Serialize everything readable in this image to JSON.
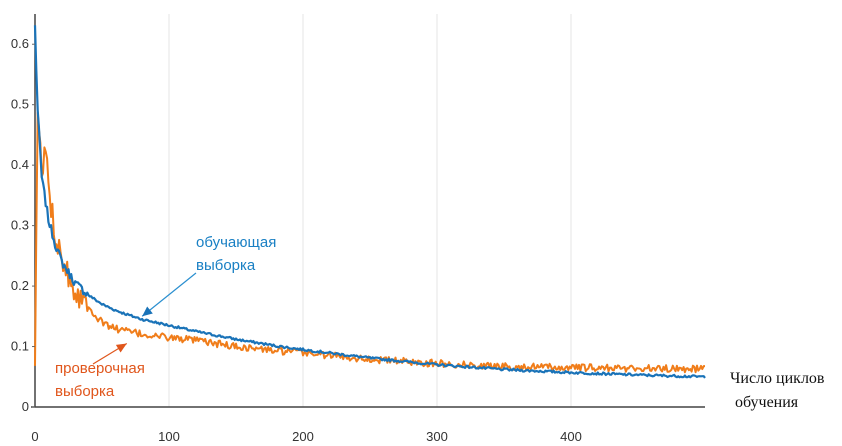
{
  "chart_data": {
    "type": "line",
    "title": "",
    "xlabel": "Число циклов обучения",
    "xlabel_lines": [
      "Число циклов",
      "обучения"
    ],
    "ylabel": "",
    "xlim": [
      0,
      500
    ],
    "ylim": [
      0,
      0.65
    ],
    "xticks": [
      0,
      100,
      200,
      300,
      400
    ],
    "yticks": [
      0,
      0.1,
      0.2,
      0.3,
      0.4,
      0.5,
      0.6
    ],
    "ytick_labels": [
      "0",
      "0.1",
      "0.2",
      "0.3",
      "0.4",
      "0.5",
      "0.6"
    ],
    "grid": "vertical",
    "legend": "none",
    "colors": {
      "train": "#1a73b8",
      "validation": "#f07d1a",
      "train_label": "#1a80c4",
      "validation_label": "#e0561c"
    },
    "series": [
      {
        "key": "train",
        "x": [
          0,
          2,
          5,
          10,
          15,
          20,
          30,
          40,
          50,
          60,
          70,
          80,
          100,
          120,
          150,
          180,
          200,
          250,
          300,
          350,
          400,
          450,
          500
        ],
        "values": [
          0.63,
          0.49,
          0.38,
          0.31,
          0.27,
          0.24,
          0.205,
          0.185,
          0.17,
          0.16,
          0.152,
          0.145,
          0.135,
          0.125,
          0.112,
          0.101,
          0.095,
          0.081,
          0.07,
          0.062,
          0.057,
          0.053,
          0.05
        ],
        "noise": 0.002
      },
      {
        "key": "validation",
        "x": [
          0,
          2,
          5,
          8,
          12,
          15,
          20,
          25,
          30,
          35,
          40,
          45,
          50,
          60,
          70,
          80,
          100,
          120,
          150,
          180,
          200,
          250,
          300,
          350,
          400,
          450,
          500
        ],
        "values": [
          0.05,
          0.5,
          0.38,
          0.43,
          0.33,
          0.29,
          0.25,
          0.22,
          0.19,
          0.18,
          0.17,
          0.15,
          0.14,
          0.13,
          0.125,
          0.12,
          0.115,
          0.11,
          0.1,
          0.093,
          0.09,
          0.079,
          0.072,
          0.067,
          0.065,
          0.064,
          0.063
        ],
        "noise": 0.006
      }
    ],
    "annotations": [
      {
        "key": "train",
        "lines": [
          "обучающая",
          "выборка"
        ],
        "arrow_to": [
          80,
          0.16
        ]
      },
      {
        "key": "validation",
        "lines": [
          "проверочная",
          "выборка"
        ],
        "arrow_to": [
          67,
          0.11
        ]
      }
    ]
  }
}
